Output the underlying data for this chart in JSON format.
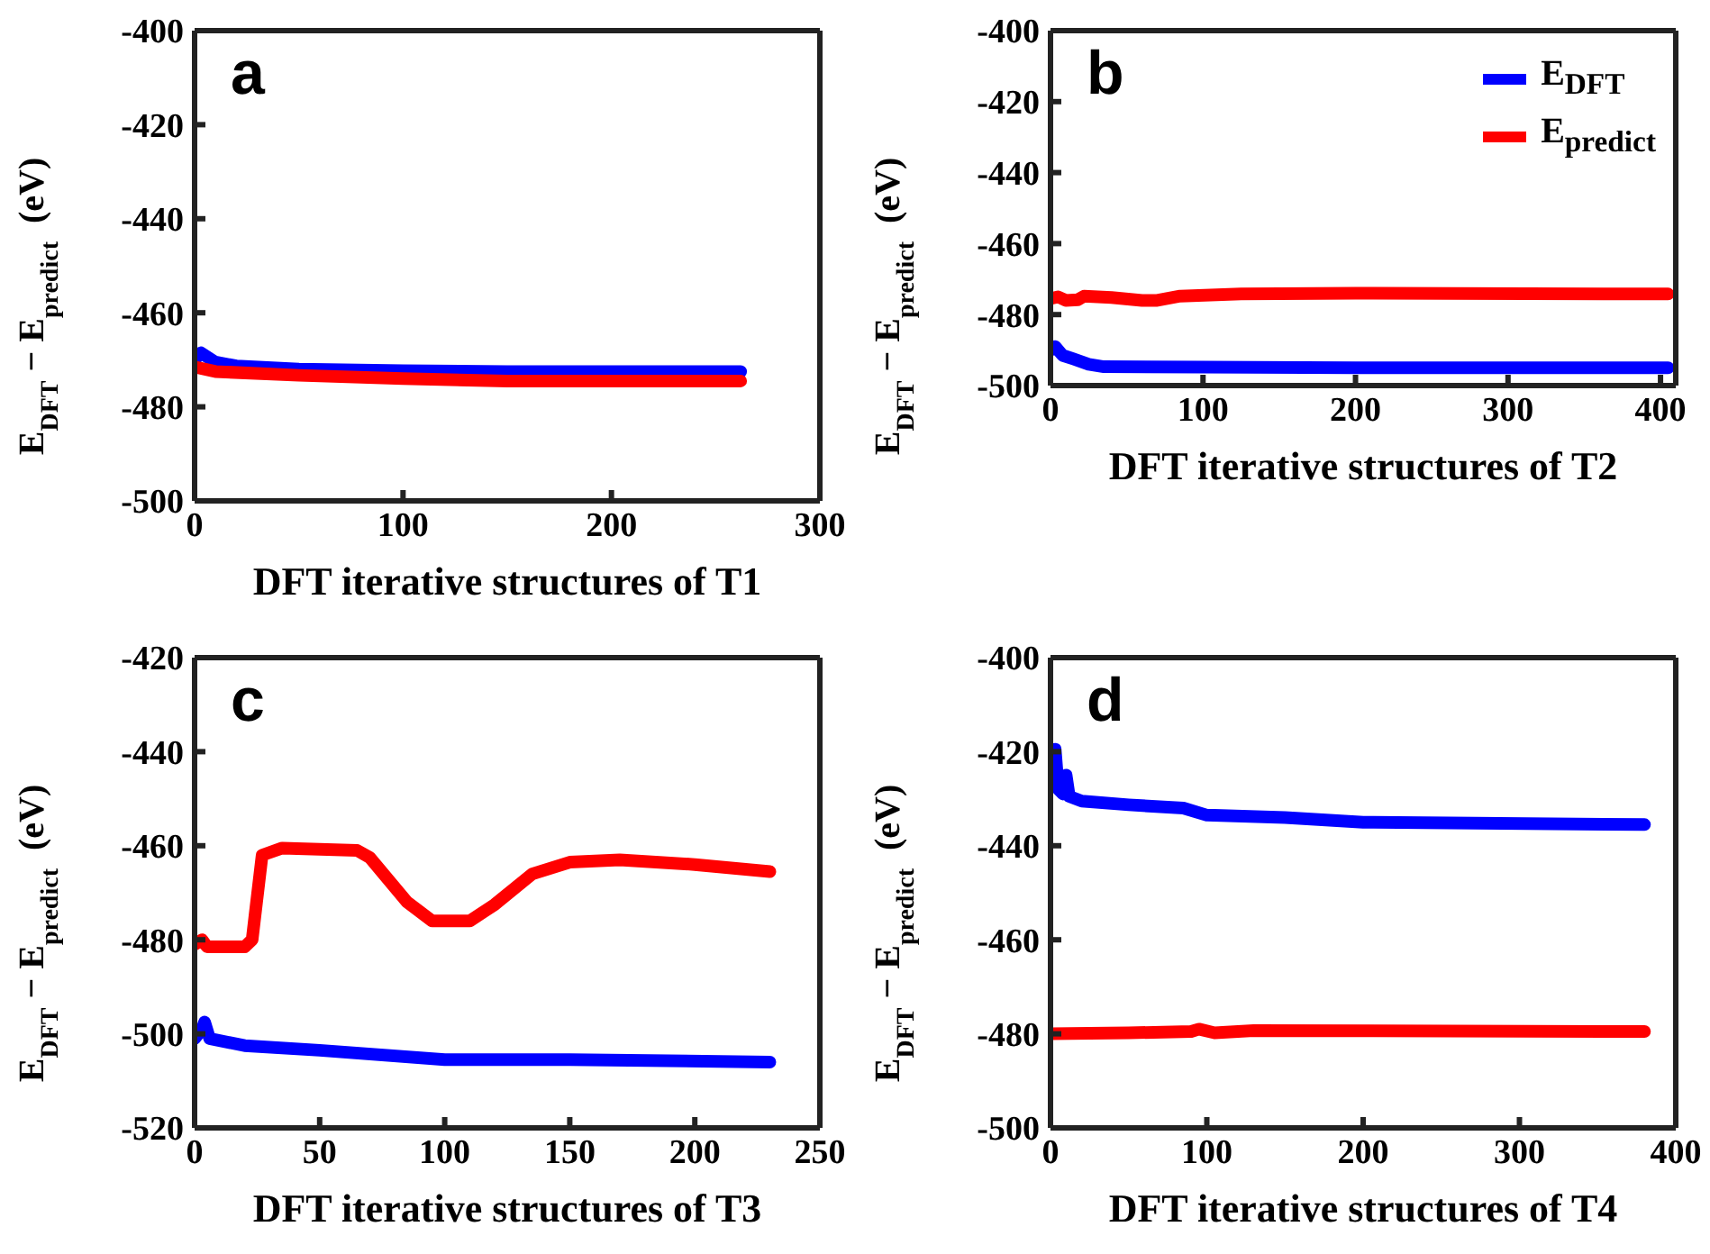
{
  "chart_data": [
    {
      "type": "line",
      "title": "a",
      "xlabel": "DFT iterative structures of T1",
      "ylabel": "E$_{DFT}$ − E$_{predict}$  (eV)",
      "xlim": [
        0,
        300
      ],
      "xticks": [
        0,
        100,
        200,
        300
      ],
      "ylim": [
        -500,
        -400
      ],
      "yticks": [
        -500,
        -480,
        -460,
        -440,
        -420,
        -400
      ],
      "legend": false,
      "series": [
        {
          "color": "#0000ff",
          "x": [
            0,
            3,
            10,
            20,
            50,
            100,
            150,
            200,
            262
          ],
          "values": [
            -470,
            -468.5,
            -470.5,
            -471.3,
            -472,
            -472.3,
            -472.5,
            -472.5,
            -472.5
          ]
        },
        {
          "color": "#ff0000",
          "x": [
            0,
            10,
            50,
            100,
            150,
            200,
            262
          ],
          "values": [
            -471.5,
            -472.5,
            -473.3,
            -474,
            -474.5,
            -474.5,
            -474.5
          ]
        }
      ]
    },
    {
      "type": "line",
      "title": "b",
      "xlabel": "DFT iterative structures of T2",
      "ylabel": "E$_{DFT}$ − E$_{predict}$  (eV)",
      "xlim": [
        0,
        410
      ],
      "xticks": [
        0,
        100,
        200,
        300,
        400
      ],
      "ylim": [
        -500,
        -400
      ],
      "yticks": [
        -500,
        -480,
        -460,
        -440,
        -420,
        -400
      ],
      "legend": "top right",
      "series": [
        {
          "name": "E$_{DFT}$",
          "color": "#0000ff",
          "x": [
            0,
            3,
            8,
            15,
            25,
            35,
            100,
            200,
            405
          ],
          "values": [
            -490,
            -489,
            -491.5,
            -492.5,
            -494,
            -494.7,
            -494.8,
            -495,
            -495
          ]
        },
        {
          "name": "E$_{predict}$",
          "color": "#ff0000",
          "x": [
            0,
            5,
            10,
            18,
            22,
            40,
            60,
            70,
            85,
            125,
            200,
            405
          ],
          "values": [
            -475.5,
            -475,
            -476,
            -475.8,
            -474.8,
            -475.2,
            -476,
            -476,
            -474.8,
            -474.2,
            -474,
            -474.2
          ]
        }
      ]
    },
    {
      "type": "line",
      "title": "c",
      "xlabel": "DFT iterative structures of T3",
      "ylabel": "E$_{DFT}$ − E$_{predict}$  (eV)",
      "xlim": [
        0,
        250
      ],
      "xticks": [
        0,
        50,
        100,
        150,
        200,
        250
      ],
      "ylim": [
        -520,
        -420
      ],
      "yticks": [
        -520,
        -500,
        -480,
        -460,
        -440,
        -420
      ],
      "legend": false,
      "series": [
        {
          "color": "#0000ff",
          "x": [
            0,
            3,
            4,
            6,
            20,
            50,
            100,
            150,
            230
          ],
          "values": [
            -501,
            -499,
            -497.5,
            -501,
            -502.5,
            -503.5,
            -505.5,
            -505.5,
            -506
          ]
        },
        {
          "color": "#ff0000",
          "x": [
            0,
            3,
            5,
            20,
            23,
            27,
            35,
            65,
            70,
            85,
            95,
            110,
            120,
            135,
            150,
            170,
            200,
            230
          ],
          "values": [
            -481,
            -480,
            -481.5,
            -481.5,
            -480,
            -462,
            -460.5,
            -461,
            -462.5,
            -472,
            -476,
            -476,
            -472.5,
            -466,
            -463.5,
            -463,
            -464,
            -465.5
          ]
        }
      ]
    },
    {
      "type": "line",
      "title": "d",
      "xlabel": "DFT iterative structures of T4",
      "ylabel": "E$_{DFT}$ − E$_{predict}$  (eV)",
      "xlim": [
        0,
        400
      ],
      "xticks": [
        0,
        100,
        200,
        300,
        400
      ],
      "ylim": [
        -500,
        -400
      ],
      "yticks": [
        -500,
        -480,
        -460,
        -440,
        -420,
        -400
      ],
      "legend": false,
      "series": [
        {
          "color": "#0000ff",
          "x": [
            0,
            3,
            5,
            8,
            10,
            12,
            20,
            50,
            85,
            100,
            150,
            200,
            380
          ],
          "values": [
            -427,
            -419.5,
            -428,
            -429,
            -425,
            -429.5,
            -430.5,
            -431.3,
            -432,
            -433.5,
            -434,
            -435,
            -435.5
          ]
        },
        {
          "color": "#ff0000",
          "x": [
            0,
            50,
            90,
            95,
            105,
            130,
            380
          ],
          "values": [
            -480,
            -479.8,
            -479.5,
            -479,
            -479.8,
            -479.3,
            -479.5
          ]
        }
      ]
    }
  ]
}
